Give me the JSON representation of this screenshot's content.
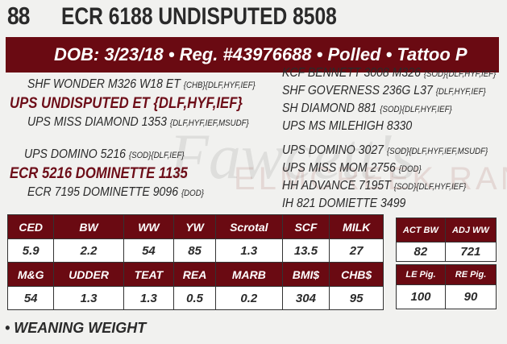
{
  "lot": "88",
  "name": "ECR 6188 UNDISPUTED 8508",
  "banner": "DOB: 3/23/18 • Reg. #43976688 • Polled • Tattoo P",
  "watermark": {
    "script": "Fawcett's",
    "text": "ELMCREEK RANCH"
  },
  "pedigree": {
    "sire_sire": {
      "name": "SHF WONDER M326 W18 ET",
      "tags": "{CHB}{DLF,HYF,IEF}"
    },
    "sire": "UPS UNDISPUTED ET {DLF,HYF,IEF}",
    "sire_dam": {
      "name": "UPS MISS DIAMOND 1353",
      "tags": "{DLF,HYF,IEF,MSUDF}"
    },
    "dam_sire": {
      "name": "UPS DOMINO 5216",
      "tags": "{SOD}{DLF,IEF}"
    },
    "dam": "ECR 5216 DOMINETTE 1135",
    "dam_dam": {
      "name": "ECR 7195 DOMINETTE 9096",
      "tags": "{DOD}"
    },
    "right": [
      {
        "name": "KCF BENNETT 3008 M326",
        "tags": "{SOD}{DLF,HYF,IEF}"
      },
      {
        "name": "SHF GOVERNESS 236G L37",
        "tags": "{DLF,HYF,IEF}"
      },
      {
        "name": "SH DIAMOND 881",
        "tags": "{SOD}{DLF,HYF,IEF}"
      },
      {
        "name": "UPS MS MILEHIGH 8330",
        "tags": ""
      },
      {
        "name": "UPS DOMINO 3027",
        "tags": "{SOD}{DLF,HYF,IEF,MSUDF}"
      },
      {
        "name": "UPS MISS MOM 2756",
        "tags": "{DOD}"
      },
      {
        "name": "HH ADVANCE 7195T",
        "tags": "{SOD}{DLF,HYF,IEF}"
      },
      {
        "name": "IH 821 DOMIETTE 3499",
        "tags": ""
      }
    ]
  },
  "epd": {
    "row1": {
      "headers": [
        "CED",
        "BW",
        "WW",
        "YW",
        "Scrotal",
        "SCF",
        "MILK"
      ],
      "values": [
        "5.9",
        "2.2",
        "54",
        "85",
        "1.3",
        "13.5",
        "27"
      ]
    },
    "row2": {
      "headers": [
        "M&G",
        "UDDER",
        "TEAT",
        "REA",
        "MARB",
        "BMI$",
        "CHB$"
      ],
      "values": [
        "54",
        "1.3",
        "1.3",
        "0.5",
        "0.2",
        "304",
        "95"
      ]
    }
  },
  "weights": {
    "headers": [
      "ACT BW",
      "ADJ WW"
    ],
    "values": [
      "82",
      "721"
    ]
  },
  "pig": {
    "headers": [
      "LE Pig.",
      "RE Pig."
    ],
    "values": [
      "100",
      "90"
    ]
  },
  "note": "• WEANING WEIGHT"
}
